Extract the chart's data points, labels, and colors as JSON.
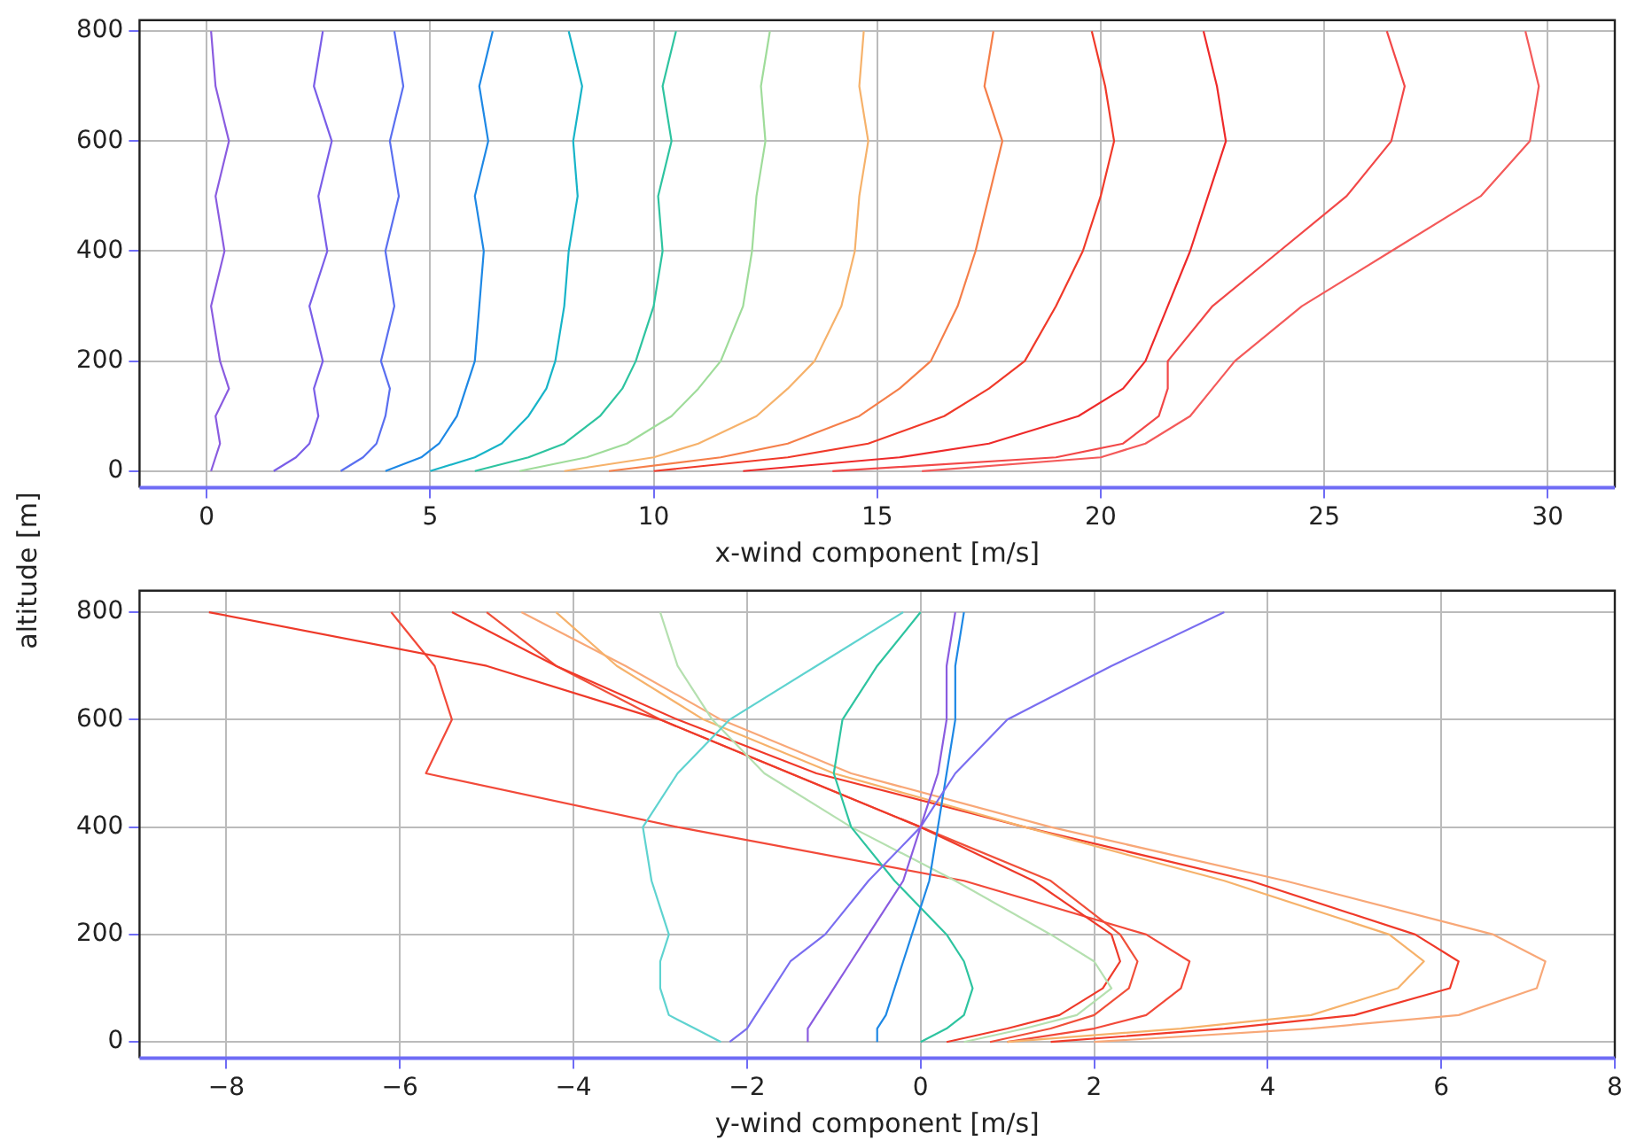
{
  "chart_data": [
    {
      "type": "line",
      "xlabel": "x-wind component [m/s]",
      "ylabel": "altitude [m]",
      "xlim": [
        -1.5,
        31.5
      ],
      "xticks": [
        0,
        5,
        10,
        15,
        20,
        25,
        30
      ],
      "ylim": [
        -30,
        820
      ],
      "yticks": [
        0,
        200,
        400,
        600,
        800
      ],
      "grid": true,
      "legend": false,
      "marker": "none",
      "line_style": "solid",
      "series": [
        {
          "color": "#8a5ce0",
          "x": [
            0.1,
            0.2,
            0.3,
            0.2,
            0.5,
            0.3,
            0.1,
            0.4,
            0.2,
            0.5,
            0.2,
            0.1
          ],
          "values": [
            0,
            25,
            50,
            100,
            150,
            200,
            300,
            400,
            500,
            600,
            700,
            800
          ]
        },
        {
          "color": "#7a5ee8",
          "x": [
            1.5,
            2,
            2.3,
            2.5,
            2.4,
            2.6,
            2.3,
            2.7,
            2.5,
            2.8,
            2.4,
            2.6
          ],
          "values": [
            0,
            25,
            50,
            100,
            150,
            200,
            300,
            400,
            500,
            600,
            700,
            800
          ]
        },
        {
          "color": "#5a6ff0",
          "x": [
            3,
            3.5,
            3.8,
            4,
            4.1,
            3.9,
            4.2,
            4,
            4.3,
            4.1,
            4.4,
            4.2
          ],
          "values": [
            0,
            25,
            50,
            100,
            150,
            200,
            300,
            400,
            500,
            600,
            700,
            800
          ]
        },
        {
          "color": "#1e88e5",
          "x": [
            4,
            4.8,
            5.2,
            5.6,
            5.8,
            6,
            6.1,
            6.2,
            6,
            6.3,
            6.1,
            6.4
          ],
          "values": [
            0,
            25,
            50,
            100,
            150,
            200,
            300,
            400,
            500,
            600,
            700,
            800
          ]
        },
        {
          "color": "#17b4c8",
          "x": [
            5,
            6,
            6.6,
            7.2,
            7.6,
            7.8,
            8,
            8.1,
            8.3,
            8.2,
            8.4,
            8.1
          ],
          "values": [
            0,
            25,
            50,
            100,
            150,
            200,
            300,
            400,
            500,
            600,
            700,
            800
          ]
        },
        {
          "color": "#2ec4a0",
          "x": [
            6,
            7.2,
            8,
            8.8,
            9.3,
            9.6,
            10,
            10.2,
            10.1,
            10.4,
            10.2,
            10.5
          ],
          "values": [
            0,
            25,
            50,
            100,
            150,
            200,
            300,
            400,
            500,
            600,
            700,
            800
          ]
        },
        {
          "color": "#9fdc9a",
          "x": [
            7,
            8.5,
            9.4,
            10.4,
            11,
            11.5,
            12,
            12.2,
            12.3,
            12.5,
            12.4,
            12.6
          ],
          "values": [
            0,
            25,
            50,
            100,
            150,
            200,
            300,
            400,
            500,
            600,
            700,
            800
          ]
        },
        {
          "color": "#f6b26b",
          "x": [
            8,
            10,
            11,
            12.3,
            13,
            13.6,
            14.2,
            14.5,
            14.6,
            14.8,
            14.6,
            14.7
          ],
          "values": [
            0,
            25,
            50,
            100,
            150,
            200,
            300,
            400,
            500,
            600,
            700,
            800
          ]
        },
        {
          "color": "#f57f4a",
          "x": [
            9,
            11.5,
            13,
            14.6,
            15.5,
            16.2,
            16.8,
            17.2,
            17.5,
            17.8,
            17.4,
            17.6
          ],
          "values": [
            0,
            25,
            50,
            100,
            150,
            200,
            300,
            400,
            500,
            600,
            700,
            800
          ]
        },
        {
          "color": "#f03a2a",
          "x": [
            10,
            13,
            14.8,
            16.5,
            17.5,
            18.3,
            19,
            19.6,
            20,
            20.3,
            20.1,
            19.8
          ],
          "values": [
            0,
            25,
            50,
            100,
            150,
            200,
            300,
            400,
            500,
            600,
            700,
            800
          ]
        },
        {
          "color": "#ee2a2a",
          "x": [
            12,
            15.5,
            17.5,
            19.5,
            20.5,
            21,
            21.5,
            22,
            22.4,
            22.8,
            22.6,
            22.3
          ],
          "values": [
            0,
            25,
            50,
            100,
            150,
            200,
            300,
            400,
            500,
            600,
            700,
            800
          ]
        },
        {
          "color": "#f24848",
          "x": [
            14,
            19,
            20.5,
            21.3,
            21.5,
            21.5,
            22.5,
            24,
            25.5,
            26.5,
            26.8,
            26.4
          ],
          "values": [
            0,
            25,
            50,
            100,
            150,
            200,
            300,
            400,
            500,
            600,
            700,
            800
          ]
        },
        {
          "color": "#f45a5a",
          "x": [
            16,
            20,
            21,
            22,
            22.5,
            23,
            24.5,
            26.5,
            28.5,
            29.6,
            29.8,
            29.5
          ],
          "values": [
            0,
            25,
            50,
            100,
            150,
            200,
            300,
            400,
            500,
            600,
            700,
            800
          ]
        }
      ]
    },
    {
      "type": "line",
      "xlabel": "y-wind component [m/s]",
      "xlim": [
        -9,
        8
      ],
      "xticks": [
        -8,
        -6,
        -4,
        -2,
        0,
        2,
        4,
        6,
        8
      ],
      "ylim": [
        -30,
        840
      ],
      "yticks": [
        0,
        200,
        400,
        600,
        800
      ],
      "grid": true,
      "legend": false,
      "marker": "none",
      "line_style": "solid",
      "series": [
        {
          "color": "#8a5ce0",
          "x": [
            -1.3,
            -1.3,
            -1.2,
            -1,
            -0.8,
            -0.6,
            -0.2,
            0,
            0.2,
            0.3,
            0.3,
            0.4
          ],
          "values": [
            0,
            25,
            50,
            100,
            150,
            200,
            300,
            400,
            500,
            600,
            700,
            800
          ]
        },
        {
          "color": "#7a6ef0",
          "x": [
            -2.2,
            -2,
            -1.9,
            -1.7,
            -1.5,
            -1.1,
            -0.6,
            0,
            0.4,
            1,
            2.2,
            3.5
          ],
          "values": [
            0,
            25,
            50,
            100,
            150,
            200,
            300,
            400,
            500,
            600,
            700,
            800
          ]
        },
        {
          "color": "#1e88e5",
          "x": [
            -0.5,
            -0.5,
            -0.4,
            -0.3,
            -0.2,
            -0.1,
            0.1,
            0.2,
            0.3,
            0.4,
            0.4,
            0.5
          ],
          "values": [
            0,
            25,
            50,
            100,
            150,
            200,
            300,
            400,
            500,
            600,
            700,
            800
          ]
        },
        {
          "color": "#5fd3d0",
          "x": [
            -2.3,
            -2.6,
            -2.9,
            -3,
            -3,
            -2.9,
            -3.1,
            -3.2,
            -2.8,
            -2.2,
            -1.2,
            -0.2
          ],
          "values": [
            0,
            25,
            50,
            100,
            150,
            200,
            300,
            400,
            500,
            600,
            700,
            800
          ]
        },
        {
          "color": "#2ec4a0",
          "x": [
            0,
            0.3,
            0.5,
            0.6,
            0.5,
            0.3,
            -0.3,
            -0.8,
            -1,
            -0.9,
            -0.5,
            0
          ],
          "values": [
            0,
            25,
            50,
            100,
            150,
            200,
            300,
            400,
            500,
            600,
            700,
            800
          ]
        },
        {
          "color": "#b5e0b0",
          "x": [
            0.5,
            1.2,
            1.8,
            2.2,
            2,
            1.5,
            0.4,
            -0.8,
            -1.8,
            -2.4,
            -2.8,
            -3
          ],
          "values": [
            0,
            25,
            50,
            100,
            150,
            200,
            300,
            400,
            500,
            600,
            700,
            800
          ]
        },
        {
          "color": "#f6b26b",
          "x": [
            1,
            3,
            4.5,
            5.5,
            5.8,
            5.4,
            3.5,
            1.2,
            -1,
            -2.5,
            -3.5,
            -4.2
          ],
          "values": [
            0,
            25,
            50,
            100,
            150,
            200,
            300,
            400,
            500,
            600,
            700,
            800
          ]
        },
        {
          "color": "#f03a2a",
          "x": [
            1.5,
            3.5,
            5,
            6.1,
            6.2,
            5.7,
            3.8,
            1.2,
            -1.2,
            -2.8,
            -4.2,
            -5.4
          ],
          "values": [
            0,
            25,
            50,
            100,
            150,
            200,
            300,
            400,
            500,
            600,
            700,
            800
          ]
        },
        {
          "color": "#f8a878",
          "x": [
            2,
            4.5,
            6.2,
            7.1,
            7.2,
            6.6,
            4.2,
            1.5,
            -0.8,
            -2.3,
            -3.4,
            -4.6
          ],
          "values": [
            0,
            25,
            50,
            100,
            150,
            200,
            300,
            400,
            500,
            600,
            700,
            800
          ]
        },
        {
          "color": "#ee3a2a",
          "x": [
            0.3,
            1,
            1.6,
            2.1,
            2.3,
            2.2,
            1.3,
            0,
            -1.5,
            -3,
            -5,
            -8.2
          ],
          "values": [
            0,
            25,
            50,
            100,
            150,
            200,
            300,
            400,
            500,
            600,
            700,
            800
          ]
        },
        {
          "color": "#f24a3a",
          "x": [
            1,
            2,
            2.6,
            3,
            3.1,
            2.6,
            0.5,
            -2.8,
            -5.7,
            -5.4,
            -5.6,
            -6.1
          ],
          "values": [
            0,
            25,
            50,
            100,
            150,
            200,
            300,
            400,
            500,
            600,
            700,
            800
          ]
        },
        {
          "color": "#f0503a",
          "x": [
            0.8,
            1.5,
            2,
            2.4,
            2.5,
            2.3,
            1.5,
            0,
            -1.5,
            -3,
            -4.2,
            -5
          ],
          "values": [
            0,
            25,
            50,
            100,
            150,
            200,
            300,
            400,
            500,
            600,
            700,
            800
          ]
        }
      ]
    }
  ]
}
